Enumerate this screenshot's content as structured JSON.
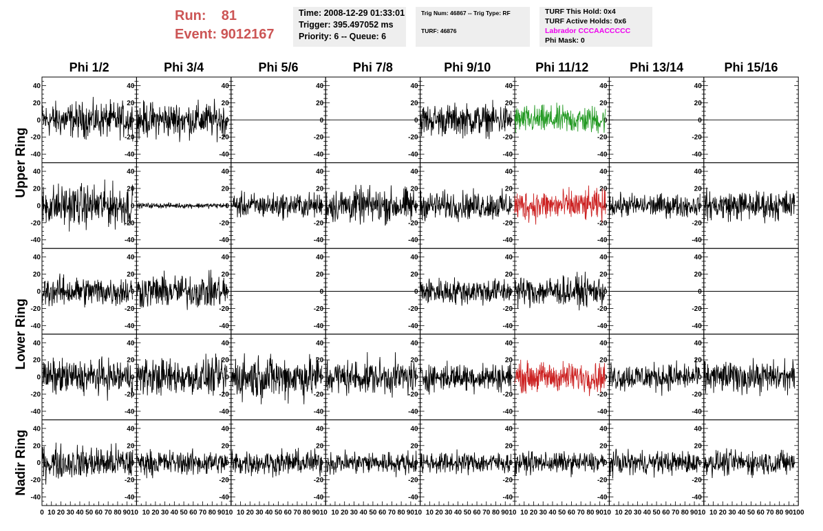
{
  "header": {
    "run_label": "Run:",
    "run_value": "81",
    "event_label": "Event:",
    "event_value": "9012167"
  },
  "time_box": {
    "time": "Time: 2008-12-29 01:33:01",
    "trigger": "Trigger: 395.497052 ms",
    "priority": "Priority: 6 -- Queue: 6"
  },
  "trig_box": {
    "trig": "Trig Num: 46867 -- Trig Type: RF",
    "turf": "TURF: 46876"
  },
  "turf_box": {
    "hold": "TURF This Hold: 0x4",
    "active": "TURF Active Holds: 0x6",
    "labrador": "Labrador CCCAACCCCC",
    "phimask": "Phi Mask: 0"
  },
  "colors": {
    "header_red": "#cc5555",
    "labrador_magenta": "#ee00ee",
    "trace_default": "#000000",
    "trace_green": "#229922",
    "trace_red": "#cc2222",
    "box_bg": "#eeeeee"
  },
  "chart_data": {
    "type": "line",
    "columns": [
      "Phi 1/2",
      "Phi 3/4",
      "Phi 5/6",
      "Phi 7/8",
      "Phi 9/10",
      "Phi 11/12",
      "Phi 13/14",
      "Phi 15/16"
    ],
    "rows": [
      "Upper Ring",
      "Lower Ring",
      "Nadir Ring"
    ],
    "row_panels": [
      2,
      2,
      1
    ],
    "y_ticks": [
      "40",
      "20",
      "0",
      "-20",
      "-40"
    ],
    "y_tick_values": [
      40,
      20,
      0,
      -20,
      -40
    ],
    "ylim": [
      -50,
      50
    ],
    "xlim": [
      0,
      100
    ],
    "x_tick_labels": [
      "0",
      "10",
      "20",
      "30",
      "40",
      "50",
      "60",
      "70",
      "80",
      "90",
      "100"
    ],
    "x_ticks_first_panel": [
      "0",
      "10",
      "20",
      "30",
      "40",
      "50",
      "60",
      "70",
      "80",
      "9010"
    ],
    "x_ticks_panel": [
      "10",
      "20",
      "30",
      "40",
      "50",
      "60",
      "70",
      "80",
      "9010"
    ],
    "x_ticks_last_panel": [
      "10",
      "20",
      "30",
      "40",
      "50",
      "60",
      "70",
      "80",
      "90",
      "100"
    ],
    "n_samples": 260,
    "panels": [
      {
        "r": 0,
        "c": 0,
        "amp": 20,
        "color": "trace_default"
      },
      {
        "r": 0,
        "c": 1,
        "amp": 20,
        "color": "trace_default"
      },
      {
        "r": 0,
        "c": 2,
        "amp": 0,
        "color": "trace_default"
      },
      {
        "r": 0,
        "c": 3,
        "amp": 0,
        "color": "trace_default"
      },
      {
        "r": 0,
        "c": 4,
        "amp": 18,
        "color": "trace_default"
      },
      {
        "r": 0,
        "c": 5,
        "amp": 16,
        "color": "trace_green"
      },
      {
        "r": 0,
        "c": 6,
        "amp": 0,
        "color": "trace_default"
      },
      {
        "r": 0,
        "c": 7,
        "amp": 0,
        "color": "trace_default"
      },
      {
        "r": 1,
        "c": 0,
        "amp": 24,
        "color": "trace_default"
      },
      {
        "r": 1,
        "c": 1,
        "amp": 3,
        "color": "trace_default"
      },
      {
        "r": 1,
        "c": 2,
        "amp": 14,
        "color": "trace_default"
      },
      {
        "r": 1,
        "c": 3,
        "amp": 20,
        "color": "trace_default"
      },
      {
        "r": 1,
        "c": 4,
        "amp": 16,
        "color": "trace_default"
      },
      {
        "r": 1,
        "c": 5,
        "amp": 18,
        "color": "trace_red"
      },
      {
        "r": 1,
        "c": 6,
        "amp": 13,
        "color": "trace_default"
      },
      {
        "r": 1,
        "c": 7,
        "amp": 17,
        "color": "trace_default"
      },
      {
        "r": 2,
        "c": 0,
        "amp": 17,
        "color": "trace_default"
      },
      {
        "r": 2,
        "c": 1,
        "amp": 19,
        "color": "trace_default"
      },
      {
        "r": 2,
        "c": 2,
        "amp": 0,
        "color": "trace_default"
      },
      {
        "r": 2,
        "c": 3,
        "amp": 0,
        "color": "trace_default"
      },
      {
        "r": 2,
        "c": 4,
        "amp": 15,
        "color": "trace_default"
      },
      {
        "r": 2,
        "c": 5,
        "amp": 17,
        "color": "trace_default"
      },
      {
        "r": 2,
        "c": 6,
        "amp": 0,
        "color": "trace_default"
      },
      {
        "r": 2,
        "c": 7,
        "amp": 0,
        "color": "trace_default"
      },
      {
        "r": 3,
        "c": 0,
        "amp": 20,
        "color": "trace_default"
      },
      {
        "r": 3,
        "c": 1,
        "amp": 21,
        "color": "trace_default"
      },
      {
        "r": 3,
        "c": 2,
        "amp": 25,
        "color": "trace_default"
      },
      {
        "r": 3,
        "c": 3,
        "amp": 20,
        "color": "trace_default"
      },
      {
        "r": 3,
        "c": 4,
        "amp": 16,
        "color": "trace_default"
      },
      {
        "r": 3,
        "c": 5,
        "amp": 17,
        "color": "trace_red"
      },
      {
        "r": 3,
        "c": 6,
        "amp": 16,
        "color": "trace_default"
      },
      {
        "r": 3,
        "c": 7,
        "amp": 18,
        "color": "trace_default"
      },
      {
        "r": 4,
        "c": 0,
        "amp": 19,
        "color": "trace_default"
      },
      {
        "r": 4,
        "c": 1,
        "amp": 14,
        "color": "trace_default"
      },
      {
        "r": 4,
        "c": 2,
        "amp": 14,
        "color": "trace_default"
      },
      {
        "r": 4,
        "c": 3,
        "amp": 13,
        "color": "trace_default"
      },
      {
        "r": 4,
        "c": 4,
        "amp": 12,
        "color": "trace_default"
      },
      {
        "r": 4,
        "c": 5,
        "amp": 12,
        "color": "trace_default"
      },
      {
        "r": 4,
        "c": 6,
        "amp": 13,
        "color": "trace_default"
      },
      {
        "r": 4,
        "c": 7,
        "amp": 14,
        "color": "trace_default"
      }
    ]
  }
}
